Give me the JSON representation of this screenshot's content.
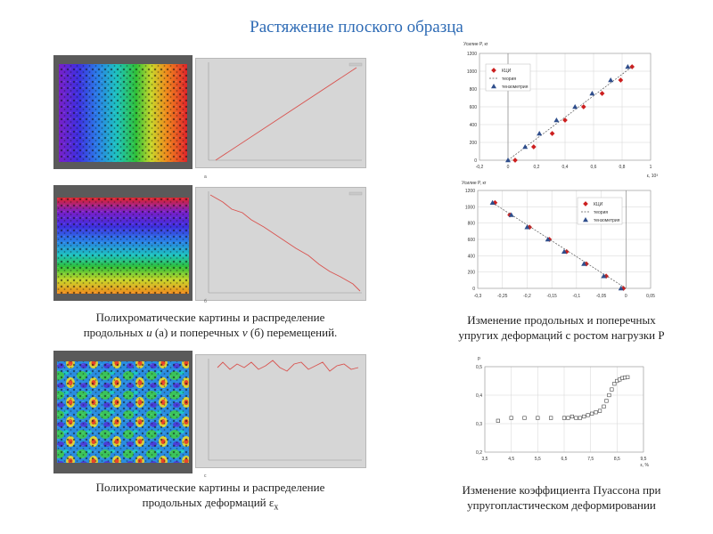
{
  "slide": {
    "title": "Растяжение плоского образца"
  },
  "left": {
    "caption1": [
      "Полихроматические картины и распределение",
      "продольных ",
      "u",
      " (а) и поперечных ",
      "v",
      " (б) перемещений."
    ],
    "caption2": [
      "Полихроматические картины и распределение",
      "продольных деформаций ε",
      "x"
    ],
    "marks": {
      "a": "а",
      "b": "б",
      "c": "с"
    }
  },
  "right": {
    "caption1": [
      "Изменение продольных и поперечных",
      "упругих деформаций с ростом нагрузки P"
    ],
    "caption2": [
      "Изменение коэффициента Пуассона при",
      "упругопластическом деформировании"
    ]
  },
  "colors": {
    "title": "#2e6bb5",
    "kci": "#cc1f1f",
    "theory": "#555555",
    "tenso": "#2f4e8c",
    "redline": "#d9534f"
  },
  "chart_data": [
    {
      "type": "scatter",
      "title": "",
      "ylabel": "Усилие P, кг",
      "xlabel": "ε, 10³",
      "xlim": [
        -0.2,
        1
      ],
      "ylim": [
        0,
        1200
      ],
      "xticks": [
        "-0,2",
        "0",
        "0,2",
        "0,4",
        "0,6",
        "0,8",
        "1"
      ],
      "yticks": [
        "0",
        "200",
        "400",
        "600",
        "800",
        "1000",
        "1200"
      ],
      "legend": [
        "КЦИ",
        "теория",
        "тензометрия"
      ],
      "legend_position": "top-left",
      "grid": true,
      "series": [
        {
          "name": "КЦИ",
          "x": [
            0.05,
            0.18,
            0.31,
            0.4,
            0.53,
            0.66,
            0.79,
            0.87
          ],
          "y": [
            0,
            150,
            300,
            450,
            600,
            750,
            900,
            1050
          ]
        },
        {
          "name": "теория",
          "x": [
            0.0,
            0.87
          ],
          "y": [
            0,
            1050
          ]
        },
        {
          "name": "тензометрия",
          "x": [
            0.0,
            0.12,
            0.22,
            0.34,
            0.47,
            0.59,
            0.72,
            0.84
          ],
          "y": [
            0,
            150,
            300,
            450,
            600,
            750,
            900,
            1050
          ]
        }
      ]
    },
    {
      "type": "scatter",
      "title": "",
      "ylabel": "Усилие P, кг",
      "xlim": [
        -0.3,
        0.05
      ],
      "ylim": [
        0,
        1200
      ],
      "xticks": [
        "-0,3",
        "-0,25",
        "-0,2",
        "-0,15",
        "-0,1",
        "-0,05",
        "0",
        "0,05"
      ],
      "yticks": [
        "0",
        "200",
        "400",
        "600",
        "800",
        "1000",
        "1200"
      ],
      "legend": [
        "КЦИ",
        "теория",
        "тензометрия"
      ],
      "legend_position": "top-right",
      "grid": true,
      "series": [
        {
          "name": "КЦИ",
          "x": [
            -0.265,
            -0.235,
            -0.195,
            -0.155,
            -0.12,
            -0.08,
            -0.04,
            -0.005
          ],
          "y": [
            1050,
            900,
            750,
            600,
            450,
            300,
            150,
            0
          ]
        },
        {
          "name": "теория",
          "x": [
            -0.27,
            0.0
          ],
          "y": [
            1050,
            0
          ]
        },
        {
          "name": "тензометрия",
          "x": [
            -0.27,
            -0.232,
            -0.2,
            -0.158,
            -0.125,
            -0.085,
            -0.045,
            -0.01
          ],
          "y": [
            1050,
            900,
            750,
            600,
            450,
            300,
            150,
            0
          ]
        }
      ]
    },
    {
      "type": "scatter",
      "title": "",
      "ylabel": "p",
      "xlabel": "ε, %",
      "xlim": [
        3.5,
        9.5
      ],
      "ylim": [
        0.2,
        0.5
      ],
      "xticks": [
        "3,5",
        "4,5",
        "5,5",
        "6,5",
        "7,5",
        "8,5",
        "9,5"
      ],
      "yticks": [
        "0,2",
        "0,3",
        "0,4",
        "0,5"
      ],
      "grid": true,
      "series": [
        {
          "name": "",
          "x": [
            4.0,
            4.5,
            5.0,
            5.5,
            6.0,
            6.5,
            6.65,
            6.8,
            6.95,
            7.1,
            7.25,
            7.4,
            7.55,
            7.7,
            7.85,
            8.0,
            8.1,
            8.2,
            8.3,
            8.4,
            8.5,
            8.6,
            8.7,
            8.8,
            8.9
          ],
          "y": [
            0.31,
            0.32,
            0.32,
            0.32,
            0.32,
            0.32,
            0.32,
            0.325,
            0.32,
            0.32,
            0.325,
            0.33,
            0.335,
            0.34,
            0.345,
            0.36,
            0.38,
            0.4,
            0.42,
            0.44,
            0.45,
            0.455,
            0.46,
            0.462,
            0.463
          ]
        }
      ]
    }
  ]
}
